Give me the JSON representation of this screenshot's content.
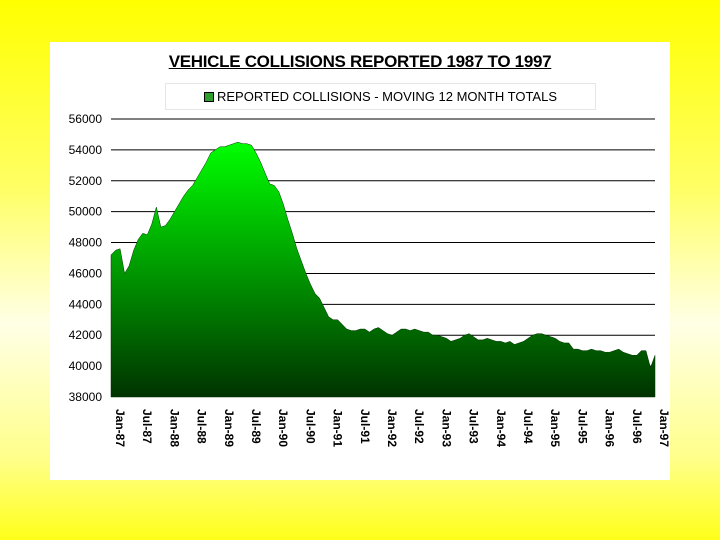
{
  "chart_data": {
    "type": "area",
    "title": "VEHICLE COLLISIONS REPORTED 1987 TO 1997",
    "xlabel": "",
    "ylabel": "",
    "ylim": [
      38000,
      56000
    ],
    "yticks": [
      38000,
      40000,
      42000,
      44000,
      46000,
      48000,
      50000,
      52000,
      54000,
      56000
    ],
    "xticks": [
      "Jan-87",
      "Jul-87",
      "Jan-88",
      "Jul-88",
      "Jan-89",
      "Jul-89",
      "Jan-90",
      "Jul-90",
      "Jan-91",
      "Jul-91",
      "Jan-92",
      "Jul-92",
      "Jan-93",
      "Jul-93",
      "Jan-94",
      "Jul-94",
      "Jan-95",
      "Jul-95",
      "Jan-96",
      "Jul-96",
      "Jan-97"
    ],
    "grid": true,
    "legend_position": "top",
    "series": [
      {
        "name": "REPORTED COLLISIONS - MOVING 12 MONTH TOTALS",
        "color_top": "#00ff00",
        "color_bottom": "#003300",
        "x": [
          "Jan-87",
          "Feb-87",
          "Mar-87",
          "Apr-87",
          "May-87",
          "Jun-87",
          "Jul-87",
          "Aug-87",
          "Sep-87",
          "Oct-87",
          "Nov-87",
          "Dec-87",
          "Jan-88",
          "Feb-88",
          "Mar-88",
          "Apr-88",
          "May-88",
          "Jun-88",
          "Jul-88",
          "Aug-88",
          "Sep-88",
          "Oct-88",
          "Nov-88",
          "Dec-88",
          "Jan-89",
          "Feb-89",
          "Mar-89",
          "Apr-89",
          "May-89",
          "Jun-89",
          "Jul-89",
          "Aug-89",
          "Sep-89",
          "Oct-89",
          "Nov-89",
          "Dec-89",
          "Jan-90",
          "Feb-90",
          "Mar-90",
          "Apr-90",
          "May-90",
          "Jun-90",
          "Jul-90",
          "Aug-90",
          "Sep-90",
          "Oct-90",
          "Nov-90",
          "Dec-90",
          "Jan-91",
          "Feb-91",
          "Mar-91",
          "Apr-91",
          "May-91",
          "Jun-91",
          "Jul-91",
          "Aug-91",
          "Sep-91",
          "Oct-91",
          "Nov-91",
          "Dec-91",
          "Jan-92",
          "Feb-92",
          "Mar-92",
          "Apr-92",
          "May-92",
          "Jun-92",
          "Jul-92",
          "Aug-92",
          "Sep-92",
          "Oct-92",
          "Nov-92",
          "Dec-92",
          "Jan-93",
          "Feb-93",
          "Mar-93",
          "Apr-93",
          "May-93",
          "Jun-93",
          "Jul-93",
          "Aug-93",
          "Sep-93",
          "Oct-93",
          "Nov-93",
          "Dec-93",
          "Jan-94",
          "Feb-94",
          "Mar-94",
          "Apr-94",
          "May-94",
          "Jun-94",
          "Jul-94",
          "Aug-94",
          "Sep-94",
          "Oct-94",
          "Nov-94",
          "Dec-94",
          "Jan-95",
          "Feb-95",
          "Mar-95",
          "Apr-95",
          "May-95",
          "Jun-95",
          "Jul-95",
          "Aug-95",
          "Sep-95",
          "Oct-95",
          "Nov-95",
          "Dec-95",
          "Jan-96",
          "Feb-96",
          "Mar-96",
          "Apr-96",
          "May-96",
          "Jun-96",
          "Jul-96",
          "Aug-96",
          "Sep-96",
          "Oct-96",
          "Nov-96",
          "Dec-96",
          "Jan-97"
        ],
        "values": [
          47200,
          47500,
          47600,
          46000,
          46500,
          47500,
          48200,
          48600,
          48500,
          49200,
          50300,
          49000,
          49100,
          49500,
          50000,
          50500,
          51000,
          51400,
          51700,
          52200,
          52700,
          53200,
          53800,
          54000,
          54200,
          54200,
          54300,
          54400,
          54500,
          54400,
          54400,
          54300,
          53800,
          53200,
          52500,
          51800,
          51700,
          51300,
          50500,
          49500,
          48600,
          47600,
          46800,
          46000,
          45300,
          44700,
          44400,
          43800,
          43200,
          43000,
          43000,
          42700,
          42400,
          42300,
          42300,
          42400,
          42400,
          42200,
          42400,
          42500,
          42300,
          42100,
          42000,
          42200,
          42400,
          42400,
          42300,
          42400,
          42300,
          42200,
          42200,
          42000,
          42000,
          41900,
          41800,
          41600,
          41700,
          41800,
          42000,
          42100,
          41900,
          41700,
          41700,
          41800,
          41700,
          41600,
          41600,
          41500,
          41600,
          41400,
          41500,
          41600,
          41800,
          42000,
          42100,
          42100,
          42000,
          41900,
          41800,
          41600,
          41500,
          41500,
          41100,
          41100,
          41000,
          41000,
          41100,
          41000,
          41000,
          40900,
          40900,
          41000,
          41100,
          40900,
          40800,
          40700,
          40700,
          41000,
          41000,
          39900,
          40700
        ]
      }
    ]
  }
}
